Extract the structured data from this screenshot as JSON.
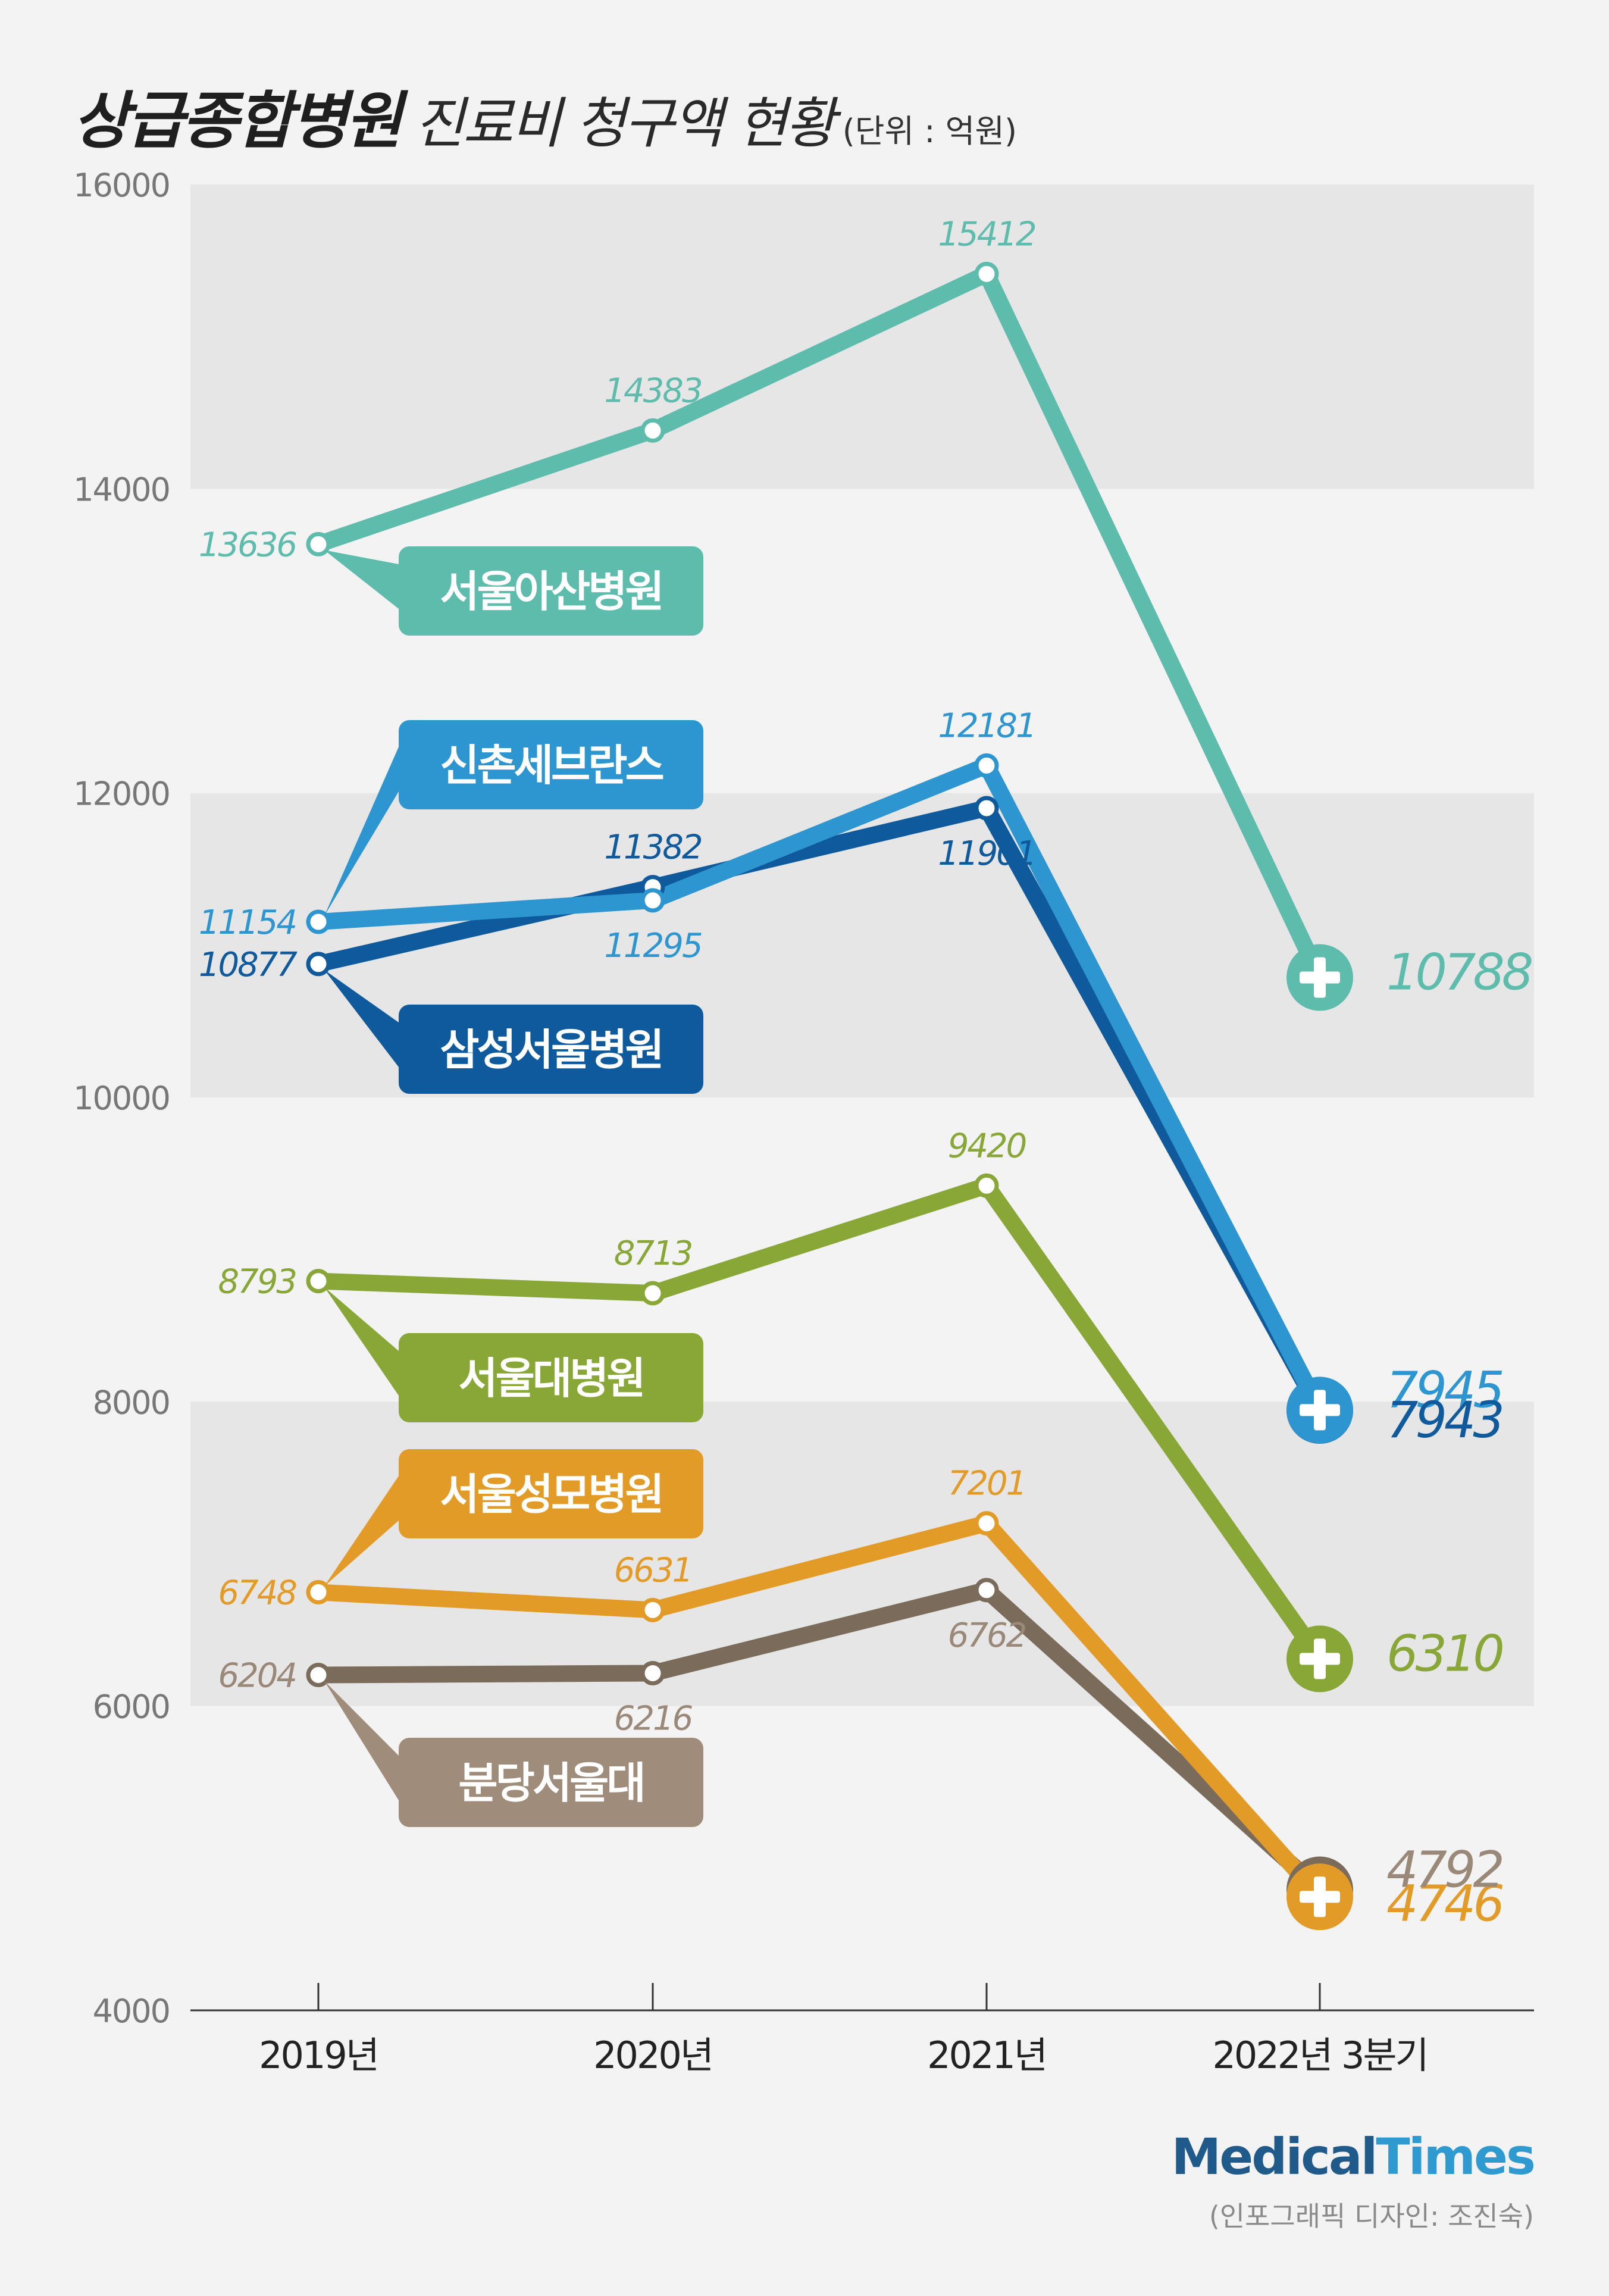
{
  "title": {
    "main": "상급종합병원",
    "sub": "진료비 청구액 현황",
    "unit": "(단위 : 억원)"
  },
  "brand": {
    "part1": "Medical",
    "part2": "Times"
  },
  "credit": "(인포그래픽 디자인: 조진숙)",
  "chart_data": {
    "type": "line",
    "categories": [
      "2019년",
      "2020년",
      "2021년",
      "2022년 3분기"
    ],
    "ylim": [
      4000,
      16000
    ],
    "yticks": [
      4000,
      6000,
      8000,
      10000,
      12000,
      14000,
      16000
    ],
    "series": [
      {
        "name": "서울아산병원",
        "color": "#5dbcac",
        "values": [
          13636,
          14383,
          15412,
          10788
        ]
      },
      {
        "name": "신촌세브란스",
        "color": "#2d95cf",
        "values": [
          11154,
          11295,
          12181,
          7945
        ]
      },
      {
        "name": "삼성서울병원",
        "color": "#0e5a9c",
        "values": [
          10877,
          11382,
          11901,
          7943
        ]
      },
      {
        "name": "서울대병원",
        "color": "#88a736",
        "values": [
          8793,
          8713,
          9420,
          6310
        ]
      },
      {
        "name": "서울성모병원",
        "color": "#e39b27",
        "values": [
          6748,
          6631,
          7201,
          4746
        ]
      },
      {
        "name": "분당서울대",
        "color": "#7a6b5b",
        "values": [
          6204,
          6216,
          6762,
          4792
        ]
      }
    ]
  },
  "label_colors": {
    "분당서울대": "#a08c7a",
    "분당서울대_values": "#9a8878"
  }
}
